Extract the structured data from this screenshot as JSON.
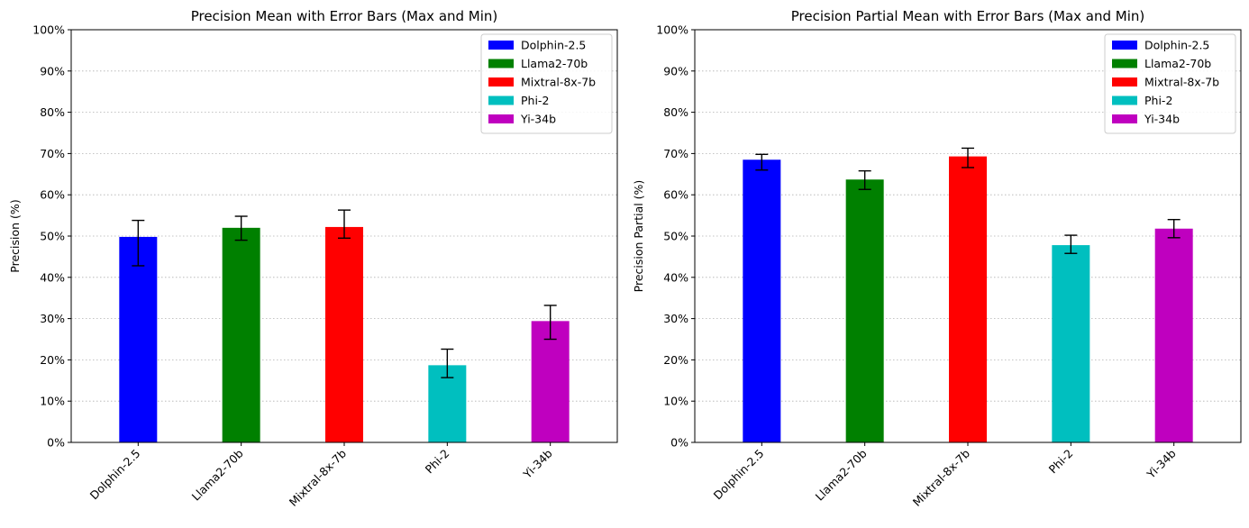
{
  "chart_data": [
    {
      "type": "bar",
      "title": "Precision Mean with Error Bars (Max and Min)",
      "ylabel": "Precision (%)",
      "xlabel": "",
      "ylim": [
        0,
        100
      ],
      "yticks": [
        "0%",
        "10%",
        "20%",
        "30%",
        "40%",
        "50%",
        "60%",
        "70%",
        "80%",
        "90%",
        "100%"
      ],
      "grid": "y dotted",
      "legend_position": "top-right",
      "categories": [
        "Dolphin-2.5",
        "Llama2-70b",
        "Mixtral-8x-7b",
        "Phi-2",
        "Yi-34b"
      ],
      "colors": [
        "#0000ff",
        "#008000",
        "#ff0000",
        "#00bfbf",
        "#bf00bf"
      ],
      "values": [
        49.8,
        52.0,
        52.2,
        18.7,
        29.4
      ],
      "err_min": [
        42.8,
        49.0,
        49.5,
        15.7,
        25.0
      ],
      "err_max": [
        53.8,
        54.8,
        56.3,
        22.6,
        33.2
      ]
    },
    {
      "type": "bar",
      "title": "Precision Partial Mean with Error Bars (Max and Min)",
      "ylabel": "Precision Partial (%)",
      "xlabel": "",
      "ylim": [
        0,
        100
      ],
      "yticks": [
        "0%",
        "10%",
        "20%",
        "30%",
        "40%",
        "50%",
        "60%",
        "70%",
        "80%",
        "90%",
        "100%"
      ],
      "grid": "y dotted",
      "legend_position": "top-right",
      "categories": [
        "Dolphin-2.5",
        "Llama2-70b",
        "Mixtral-8x-7b",
        "Phi-2",
        "Yi-34b"
      ],
      "colors": [
        "#0000ff",
        "#008000",
        "#ff0000",
        "#00bfbf",
        "#bf00bf"
      ],
      "values": [
        68.5,
        63.7,
        69.3,
        47.8,
        51.8
      ],
      "err_min": [
        66.0,
        61.3,
        66.6,
        45.8,
        49.6
      ],
      "err_max": [
        69.8,
        65.8,
        71.3,
        50.2,
        54.0
      ]
    }
  ]
}
